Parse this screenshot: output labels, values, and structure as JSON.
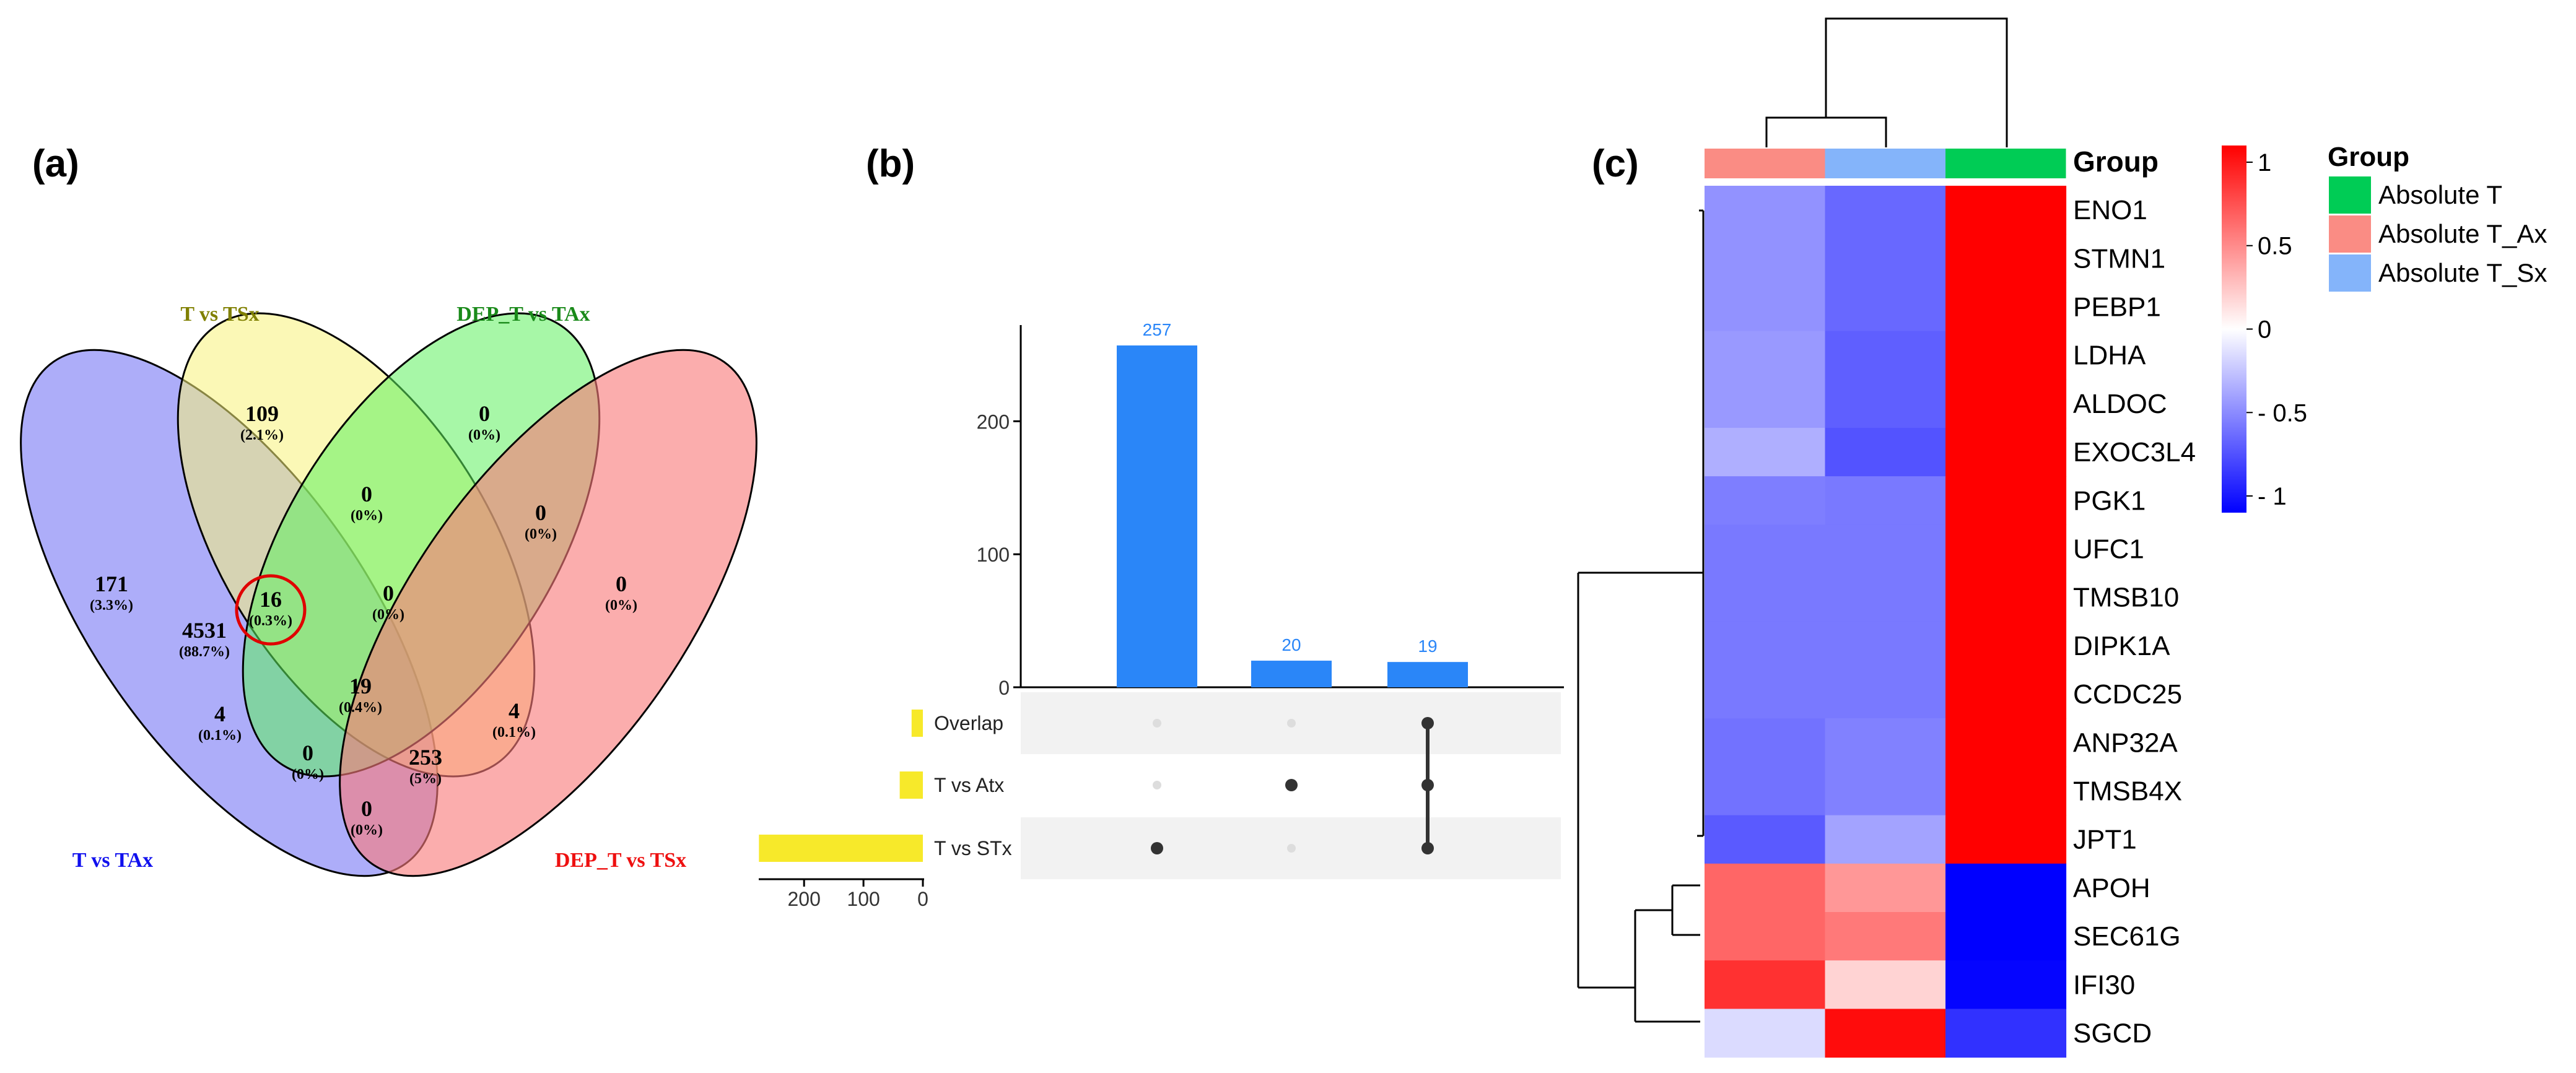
{
  "colors": {
    "venn_ttax": "#7b7bf5",
    "venn_ttsx": "#f7f27a",
    "venn_dep_ttax": "#5ff05f",
    "venn_dep_ttsx": "#f87a7a",
    "upset_bar": "#2a86f8",
    "upset_set": "#f7e92a",
    "heat_low": "#0000ff",
    "heat_mid": "#ffffff",
    "heat_high": "#ff0000",
    "group_absolute_t": "#00cc55",
    "group_absolute_t_ax": "#fa8c84",
    "group_absolute_t_sx": "#84b4fa"
  },
  "chart_data": [
    {
      "type": "venn",
      "panel_label": "(a)",
      "sets": [
        "T vs TAx",
        "T vs TSx",
        "DEP_T vs TAx",
        "DEP_T vs TSx"
      ],
      "regions": [
        {
          "sets": [
            "T vs TAx"
          ],
          "count": "171",
          "percent": "(3.3%)"
        },
        {
          "sets": [
            "T vs TSx"
          ],
          "count": "109",
          "percent": "(2.1%)"
        },
        {
          "sets": [
            "DEP_T vs TAx"
          ],
          "count": "0",
          "percent": "(0%)"
        },
        {
          "sets": [
            "DEP_T vs TSx"
          ],
          "count": "0",
          "percent": "(0%)"
        },
        {
          "sets": [
            "T vs TAx",
            "T vs TSx"
          ],
          "count": "4531",
          "percent": "(88.7%)"
        },
        {
          "sets": [
            "T vs TSx",
            "DEP_T vs TAx"
          ],
          "count": "0",
          "percent": "(0%)"
        },
        {
          "sets": [
            "DEP_T vs TAx",
            "DEP_T vs TSx"
          ],
          "count": "0",
          "percent": "(0%)"
        },
        {
          "sets": [
            "T vs TAx",
            "T vs TSx",
            "DEP_T vs TAx"
          ],
          "count": "16",
          "percent": "(0.3%)",
          "highlight": true
        },
        {
          "sets": [
            "T vs TSx",
            "DEP_T vs TAx",
            "DEP_T vs TSx"
          ],
          "count": "0",
          "percent": "(0%)"
        },
        {
          "sets": [
            "T vs TAx",
            "DEP_T vs TAx"
          ],
          "count": "4",
          "percent": "(0.1%)"
        },
        {
          "sets": [
            "T vs TAx",
            "T vs TSx",
            "DEP_T vs TAx",
            "DEP_T vs TSx"
          ],
          "count": "19",
          "percent": "(0.4%)"
        },
        {
          "sets": [
            "T vs TSx",
            "DEP_T vs TSx"
          ],
          "count": "4",
          "percent": "(0.1%)"
        },
        {
          "sets": [
            "T vs TAx",
            "DEP_T vs TAx",
            "DEP_T vs TSx"
          ],
          "count": "0",
          "percent": "(0%)"
        },
        {
          "sets": [
            "T vs TAx",
            "T vs TSx",
            "DEP_T vs TSx"
          ],
          "count": "253",
          "percent": "(5%)"
        },
        {
          "sets": [
            "T vs TAx",
            "DEP_T vs TSx"
          ],
          "count": "0",
          "percent": "(0%)"
        }
      ]
    },
    {
      "type": "upset",
      "panel_label": "(b)",
      "sets": [
        {
          "name": "Overlap",
          "size": 19
        },
        {
          "name": "T vs Atx",
          "size": 39
        },
        {
          "name": "T vs STx",
          "size": 276
        }
      ],
      "set_size_ticks": [
        "200",
        "100",
        "0"
      ],
      "intersections": [
        {
          "members": [
            "T vs STx"
          ],
          "value": 257
        },
        {
          "members": [
            "T vs Atx"
          ],
          "value": 20
        },
        {
          "members": [
            "Overlap",
            "T vs Atx",
            "T vs STx"
          ],
          "value": 19
        }
      ],
      "ylim": [
        0,
        270
      ],
      "yticks": [
        "0",
        "100",
        "200"
      ]
    },
    {
      "type": "heatmap",
      "panel_label": "(c)",
      "columns": [
        "Absolute T_Ax",
        "Absolute T_Sx",
        "Absolute T"
      ],
      "group_label": "Group",
      "rows": [
        "ENO1",
        "STMN1",
        "PEBP1",
        "LDHA",
        "ALDOC",
        "EXOC3L4",
        "PGK1",
        "UFC1",
        "TMSB10",
        "DIPK1A",
        "CCDC25",
        "ANP32A",
        "TMSB4X",
        "JPT1",
        "APOH",
        "SEC61G",
        "IFI30",
        "SGCD"
      ],
      "values": [
        [
          -0.45,
          -0.62,
          1.05
        ],
        [
          -0.45,
          -0.62,
          1.05
        ],
        [
          -0.45,
          -0.62,
          1.05
        ],
        [
          -0.42,
          -0.66,
          1.05
        ],
        [
          -0.42,
          -0.66,
          1.05
        ],
        [
          -0.33,
          -0.71,
          1.05
        ],
        [
          -0.53,
          -0.55,
          1.05
        ],
        [
          -0.55,
          -0.55,
          1.05
        ],
        [
          -0.55,
          -0.55,
          1.05
        ],
        [
          -0.55,
          -0.55,
          1.05
        ],
        [
          -0.55,
          -0.55,
          1.05
        ],
        [
          -0.58,
          -0.52,
          1.05
        ],
        [
          -0.58,
          -0.52,
          1.05
        ],
        [
          -0.68,
          -0.38,
          1.05
        ],
        [
          0.63,
          0.43,
          -1.05
        ],
        [
          0.63,
          0.55,
          -1.05
        ],
        [
          0.85,
          0.18,
          -1.03
        ],
        [
          -0.15,
          1.0,
          -0.85
        ]
      ],
      "colorbar": {
        "ticks": [
          "1",
          "0.5",
          "0",
          "- 0.5",
          "- 1"
        ],
        "range": [
          -1.1,
          1.1
        ]
      },
      "legend": {
        "title": "Group",
        "items": [
          "Absolute T",
          "Absolute T_Ax",
          "Absolute T_Sx"
        ]
      }
    }
  ]
}
